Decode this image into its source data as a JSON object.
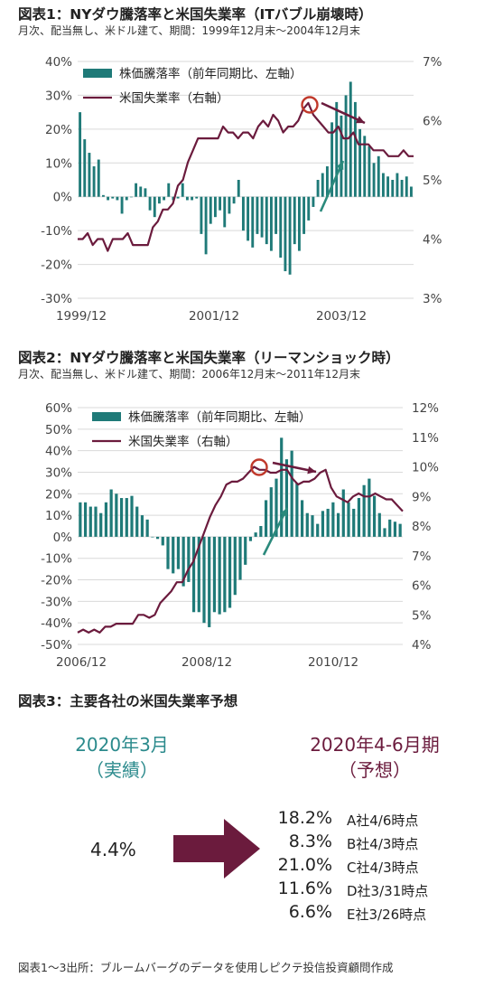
{
  "chart1": {
    "title": "図表1：NYダウ騰落率と米国失業率（ITバブル崩壊時）",
    "subtitle": "月次、配当無し、米ドル建て、期間：1999年12月末～2004年12月末",
    "legend_bar": "株価騰落率（前年同期比、左軸）",
    "legend_line": "米国失業率（右軸）"
  },
  "chart2": {
    "title": "図表2：NYダウ騰落率と米国失業率（リーマンショック時）",
    "subtitle": "月次、配当無し、米ドル建て、期間：2006年12月末～2011年12月末",
    "legend_bar": "株価騰落率（前年同期比、左軸）",
    "legend_line": "米国失業率（右軸）"
  },
  "fig3": {
    "title": "図表3：主要各社の米国失業率予想",
    "left_head1": "2020年3月",
    "left_head2": "（実績）",
    "right_head1": "2020年4-6月期",
    "right_head2": "（予想）",
    "actual_value": "4.4%",
    "forecasts": [
      {
        "value": "18.2%",
        "label": "A社4/6時点"
      },
      {
        "value": "8.3%",
        "label": "B社4/3時点"
      },
      {
        "value": "21.0%",
        "label": "C社4/3時点"
      },
      {
        "value": "11.6%",
        "label": "D社3/31時点"
      },
      {
        "value": "6.6%",
        "label": "E社3/26時点"
      }
    ]
  },
  "source": "図表1～3出所：ブルームバーグのデータを使用しピクテ投信投資顧問作成",
  "colors": {
    "bar": "#1f7a78",
    "line": "#6b1b3d",
    "arrow_teal": "#2b8a7c",
    "circle": "#c0392b",
    "grid": "#d9d9d9",
    "forecast_arrow": "#6b1b3d"
  },
  "chart_data": [
    {
      "type": "bar+line",
      "title": "図表1：NYダウ騰落率と米国失業率（ITバブル崩壊時）",
      "x_tick_labels": [
        "1999/12",
        "2001/12",
        "2003/12"
      ],
      "y_left": {
        "lim": [
          -30,
          40
        ],
        "ticks": [
          "40%",
          "30%",
          "20%",
          "10%",
          "0%",
          "-10%",
          "-20%",
          "-30%"
        ]
      },
      "y_right": {
        "lim": [
          3,
          7
        ],
        "ticks": [
          "7%",
          "6%",
          "5%",
          "4%",
          "3%"
        ]
      },
      "series": [
        {
          "name": "株価騰落率（前年同期比、左軸）",
          "axis": "left",
          "kind": "bar",
          "values": [
            25,
            17,
            13,
            9,
            11,
            0.5,
            -1,
            -0.5,
            -1,
            -5,
            -1,
            0,
            4,
            3,
            2.5,
            -4,
            -6,
            -2,
            -1,
            4,
            -1,
            -0.5,
            4,
            -1,
            -1,
            -0.5,
            -11,
            -17,
            -8,
            -6,
            -4,
            -9,
            -5,
            -2,
            5,
            -10,
            -13,
            -15,
            -11,
            -12,
            -14,
            -16,
            -11,
            -18,
            -22,
            -23,
            -14,
            -16,
            -11,
            -7,
            -3,
            5,
            7,
            9,
            22,
            28,
            24,
            30,
            34,
            28,
            20,
            18,
            15,
            10,
            12,
            7,
            6,
            5,
            7,
            5,
            6,
            3
          ]
        },
        {
          "name": "米国失業率（右軸）",
          "axis": "right",
          "kind": "line",
          "values": [
            4.0,
            4.0,
            4.1,
            3.9,
            4.0,
            4.0,
            3.8,
            4.0,
            4.0,
            4.0,
            4.1,
            3.9,
            3.9,
            3.9,
            3.9,
            4.2,
            4.3,
            4.5,
            4.5,
            4.6,
            4.9,
            5.0,
            5.3,
            5.5,
            5.7,
            5.7,
            5.7,
            5.7,
            5.7,
            5.9,
            5.8,
            5.8,
            5.7,
            5.8,
            5.8,
            5.7,
            5.9,
            6.0,
            5.9,
            6.1,
            6.0,
            5.8,
            5.9,
            5.9,
            6.0,
            6.2,
            6.3,
            6.1,
            6.0,
            5.9,
            5.8,
            5.8,
            5.9,
            5.7,
            5.7,
            5.8,
            5.6,
            5.6,
            5.6,
            5.5,
            5.5,
            5.5,
            5.4,
            5.4,
            5.4,
            5.5,
            5.4,
            5.4
          ]
        }
      ]
    },
    {
      "type": "bar+line",
      "title": "図表2：NYダウ騰落率と米国失業率（リーマンショック時）",
      "x_tick_labels": [
        "2006/12",
        "2008/12",
        "2010/12"
      ],
      "y_left": {
        "lim": [
          -50,
          60
        ],
        "ticks": [
          "60%",
          "50%",
          "40%",
          "30%",
          "20%",
          "10%",
          "0%",
          "-10%",
          "-20%",
          "-30%",
          "-40%",
          "-50%"
        ]
      },
      "y_right": {
        "lim": [
          4,
          12
        ],
        "ticks": [
          "12%",
          "11%",
          "10%",
          "9%",
          "8%",
          "7%",
          "6%",
          "5%",
          "4%"
        ]
      },
      "series": [
        {
          "name": "株価騰落率（前年同期比、左軸）",
          "axis": "left",
          "kind": "bar",
          "values": [
            16,
            16,
            14,
            14,
            11,
            16,
            22,
            20,
            18,
            18,
            19,
            14,
            10,
            8,
            0,
            -1,
            -4,
            -15,
            -17,
            -15,
            -23,
            -21,
            -35,
            -35,
            -40,
            -42,
            -35,
            -36,
            -35,
            -33,
            -27,
            -20,
            -13,
            -2,
            2,
            5,
            17,
            23,
            27,
            46,
            36,
            40,
            25,
            17,
            11,
            10,
            6,
            12,
            13,
            16,
            11,
            22,
            16,
            13,
            18,
            24,
            27,
            19,
            11,
            4,
            8,
            7,
            6
          ]
        },
        {
          "name": "米国失業率（右軸）",
          "axis": "right",
          "kind": "line",
          "values": [
            4.4,
            4.5,
            4.4,
            4.5,
            4.4,
            4.6,
            4.6,
            4.7,
            4.7,
            4.7,
            4.7,
            5.0,
            5.0,
            4.9,
            5.0,
            5.4,
            5.6,
            5.8,
            6.1,
            6.1,
            6.5,
            6.8,
            7.3,
            7.8,
            8.3,
            8.7,
            9.0,
            9.4,
            9.5,
            9.5,
            9.6,
            9.8,
            10.0,
            9.9,
            9.9,
            9.8,
            9.8,
            9.9,
            9.9,
            9.6,
            9.4,
            9.5,
            9.5,
            9.6,
            9.8,
            9.9,
            9.3,
            9.0,
            8.9,
            8.8,
            9.0,
            9.1,
            9.0,
            9.0,
            9.1,
            9.0,
            8.9,
            8.9,
            8.7,
            8.5
          ]
        }
      ]
    }
  ]
}
